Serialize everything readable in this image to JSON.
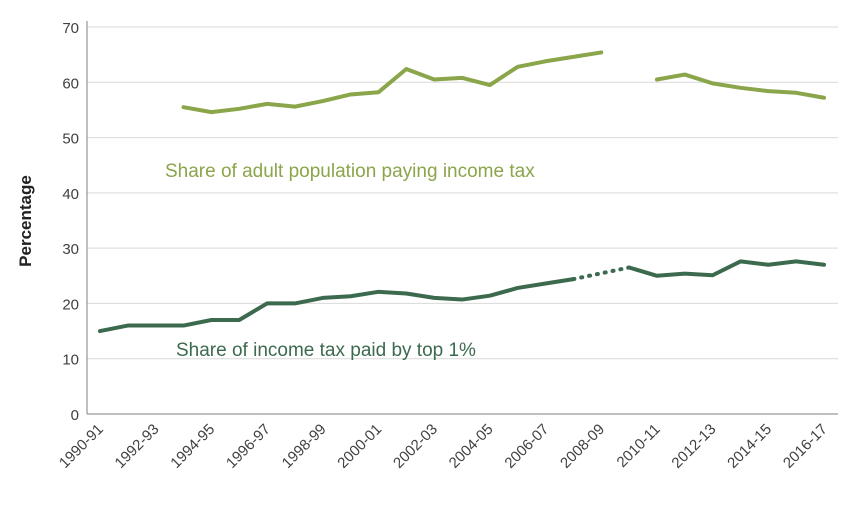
{
  "chart_data": {
    "type": "line",
    "title": "",
    "xlabel": "",
    "ylabel": "Percentage",
    "ylim": [
      0,
      70
    ],
    "yticks": [
      0,
      10,
      20,
      30,
      40,
      50,
      60,
      70
    ],
    "grid": true,
    "x": [
      "1990-91",
      "1991-92",
      "1992-93",
      "1993-94",
      "1994-95",
      "1995-96",
      "1996-97",
      "1997-98",
      "1998-99",
      "1999-00",
      "2000-01",
      "2001-02",
      "2002-03",
      "2003-04",
      "2004-05",
      "2005-06",
      "2006-07",
      "2007-08",
      "2008-09",
      "2009-10",
      "2010-11",
      "2011-12",
      "2012-13",
      "2013-14",
      "2014-15",
      "2015-16",
      "2016-17"
    ],
    "xtick_labels": [
      "1990-91",
      "1992-93",
      "1994-95",
      "1996-97",
      "1998-99",
      "2000-01",
      "2002-03",
      "2004-05",
      "2006-07",
      "2008-09",
      "2010-11",
      "2012-13",
      "2014-15",
      "2016-17"
    ],
    "series": [
      {
        "name": "Share of adult population paying income tax",
        "color": "#8aa54a",
        "values": [
          null,
          null,
          null,
          55.5,
          54.6,
          55.2,
          56.1,
          55.6,
          56.6,
          57.8,
          58.2,
          62.4,
          60.5,
          60.8,
          59.5,
          62.8,
          63.8,
          64.6,
          65.4,
          null,
          60.5,
          61.4,
          59.8,
          59.0,
          58.4,
          58.1,
          57.2
        ],
        "dotted_from": "2007-08",
        "dotted_to": "2009-10"
      },
      {
        "name": "Share of income tax paid by top 1%",
        "color": "#3c6a4e",
        "values": [
          15.0,
          16.0,
          16.0,
          16.0,
          17.0,
          17.0,
          20.0,
          20.0,
          21.0,
          21.3,
          22.1,
          21.8,
          21.0,
          20.7,
          21.4,
          22.8,
          23.6,
          24.4,
          null,
          26.5,
          25.0,
          25.4,
          25.1,
          27.6,
          27.0,
          27.6,
          27.0
        ],
        "dotted_from": "2007-08",
        "dotted_to": "2009-10"
      }
    ]
  }
}
